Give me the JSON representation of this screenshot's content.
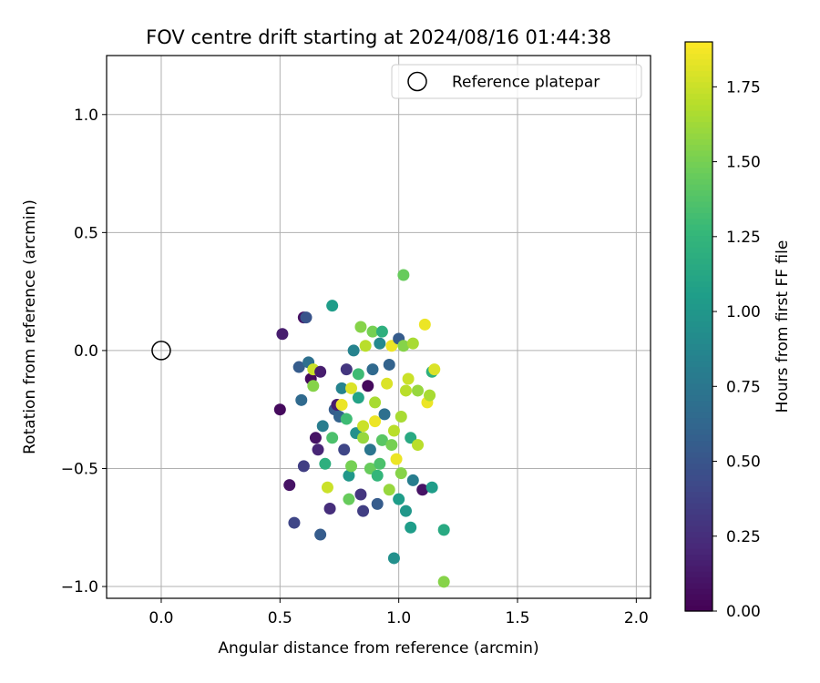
{
  "chart_data": {
    "type": "scatter",
    "title": "FOV centre drift starting at 2024/08/16 01:44:38",
    "xlabel": "Angular distance from reference (arcmin)",
    "ylabel": "Rotation from reference (arcmin)",
    "xlim": [
      -0.23,
      2.06
    ],
    "ylim": [
      -1.05,
      1.25
    ],
    "xticks": [
      0.0,
      0.5,
      1.0,
      1.5,
      2.0
    ],
    "xtick_labels": [
      "0.0",
      "0.5",
      "1.0",
      "1.5",
      "2.0"
    ],
    "yticks": [
      -1.0,
      -0.5,
      0.0,
      0.5,
      1.0
    ],
    "ytick_labels": [
      "−1.0",
      "−0.5",
      "0.0",
      "0.5",
      "1.0"
    ],
    "grid": true,
    "legend": {
      "placement": "top-right",
      "label": "Reference platepar"
    },
    "reference_point": {
      "x": 0.0,
      "y": 0.0,
      "marker": "open-circle"
    },
    "colorbar": {
      "label": "Hours from first FF file",
      "range": [
        0.0,
        1.9
      ],
      "ticks": [
        0.0,
        0.25,
        0.5,
        0.75,
        1.0,
        1.25,
        1.5,
        1.75
      ],
      "tick_labels": [
        "0.00",
        "0.25",
        "0.50",
        "0.75",
        "1.00",
        "1.25",
        "1.50",
        "1.75"
      ],
      "colormap": "viridis"
    },
    "points": [
      {
        "x": 0.5,
        "y": -0.25,
        "t": 0.05
      },
      {
        "x": 0.51,
        "y": 0.07,
        "t": 0.15
      },
      {
        "x": 0.54,
        "y": -0.57,
        "t": 0.1
      },
      {
        "x": 0.56,
        "y": -0.73,
        "t": 0.4
      },
      {
        "x": 0.58,
        "y": -0.07,
        "t": 0.55
      },
      {
        "x": 0.59,
        "y": -0.21,
        "t": 0.65
      },
      {
        "x": 0.6,
        "y": -0.49,
        "t": 0.35
      },
      {
        "x": 0.6,
        "y": 0.14,
        "t": 0.08
      },
      {
        "x": 0.61,
        "y": 0.14,
        "t": 0.5
      },
      {
        "x": 0.62,
        "y": -0.05,
        "t": 0.7
      },
      {
        "x": 0.63,
        "y": -0.12,
        "t": 0.05
      },
      {
        "x": 0.64,
        "y": -0.15,
        "t": 1.55
      },
      {
        "x": 0.64,
        "y": -0.08,
        "t": 1.75
      },
      {
        "x": 0.65,
        "y": -0.37,
        "t": 0.1
      },
      {
        "x": 0.66,
        "y": -0.42,
        "t": 0.2
      },
      {
        "x": 0.67,
        "y": -0.78,
        "t": 0.55
      },
      {
        "x": 0.67,
        "y": -0.09,
        "t": 0.15
      },
      {
        "x": 0.68,
        "y": -0.32,
        "t": 0.8
      },
      {
        "x": 0.69,
        "y": -0.48,
        "t": 1.2
      },
      {
        "x": 0.7,
        "y": -0.58,
        "t": 1.75
      },
      {
        "x": 0.71,
        "y": -0.67,
        "t": 0.25
      },
      {
        "x": 0.72,
        "y": 0.19,
        "t": 1.05
      },
      {
        "x": 0.72,
        "y": -0.37,
        "t": 1.35
      },
      {
        "x": 0.73,
        "y": -0.25,
        "t": 0.55
      },
      {
        "x": 0.74,
        "y": -0.23,
        "t": 0.15
      },
      {
        "x": 0.75,
        "y": -0.28,
        "t": 0.6
      },
      {
        "x": 0.76,
        "y": -0.16,
        "t": 0.85
      },
      {
        "x": 0.76,
        "y": -0.23,
        "t": 1.85
      },
      {
        "x": 0.77,
        "y": -0.42,
        "t": 0.4
      },
      {
        "x": 0.78,
        "y": -0.29,
        "t": 1.3
      },
      {
        "x": 0.78,
        "y": -0.08,
        "t": 0.3
      },
      {
        "x": 0.79,
        "y": -0.63,
        "t": 1.45
      },
      {
        "x": 0.79,
        "y": -0.53,
        "t": 1.0
      },
      {
        "x": 0.8,
        "y": -0.16,
        "t": 1.8
      },
      {
        "x": 0.8,
        "y": -0.49,
        "t": 1.5
      },
      {
        "x": 0.81,
        "y": 0.0,
        "t": 0.85
      },
      {
        "x": 0.82,
        "y": -0.35,
        "t": 0.95
      },
      {
        "x": 0.83,
        "y": -0.2,
        "t": 1.1
      },
      {
        "x": 0.84,
        "y": -0.61,
        "t": 0.3
      },
      {
        "x": 0.84,
        "y": 0.1,
        "t": 1.55
      },
      {
        "x": 0.85,
        "y": -0.68,
        "t": 0.35
      },
      {
        "x": 0.85,
        "y": -0.37,
        "t": 1.6
      },
      {
        "x": 0.85,
        "y": -0.32,
        "t": 1.75
      },
      {
        "x": 0.86,
        "y": 0.02,
        "t": 1.7
      },
      {
        "x": 0.87,
        "y": -0.15,
        "t": 0.05
      },
      {
        "x": 0.88,
        "y": -0.5,
        "t": 1.45
      },
      {
        "x": 0.89,
        "y": -0.08,
        "t": 0.65
      },
      {
        "x": 0.89,
        "y": 0.08,
        "t": 1.5
      },
      {
        "x": 0.9,
        "y": -0.3,
        "t": 1.85
      },
      {
        "x": 0.9,
        "y": -0.22,
        "t": 1.65
      },
      {
        "x": 0.91,
        "y": -0.65,
        "t": 0.55
      },
      {
        "x": 0.91,
        "y": -0.53,
        "t": 1.25
      },
      {
        "x": 0.92,
        "y": 0.03,
        "t": 0.9
      },
      {
        "x": 0.93,
        "y": 0.08,
        "t": 1.2
      },
      {
        "x": 0.93,
        "y": -0.38,
        "t": 1.4
      },
      {
        "x": 0.94,
        "y": -0.27,
        "t": 0.7
      },
      {
        "x": 0.95,
        "y": -0.14,
        "t": 1.8
      },
      {
        "x": 0.96,
        "y": -0.06,
        "t": 0.6
      },
      {
        "x": 0.96,
        "y": -0.59,
        "t": 1.6
      },
      {
        "x": 0.97,
        "y": 0.02,
        "t": 1.85
      },
      {
        "x": 0.97,
        "y": -0.4,
        "t": 1.5
      },
      {
        "x": 0.98,
        "y": -0.34,
        "t": 1.7
      },
      {
        "x": 0.98,
        "y": -0.88,
        "t": 0.95
      },
      {
        "x": 0.99,
        "y": -0.46,
        "t": 1.85
      },
      {
        "x": 1.0,
        "y": 0.05,
        "t": 0.55
      },
      {
        "x": 1.0,
        "y": -0.63,
        "t": 1.05
      },
      {
        "x": 1.01,
        "y": -0.52,
        "t": 1.55
      },
      {
        "x": 1.01,
        "y": -0.28,
        "t": 1.65
      },
      {
        "x": 1.02,
        "y": 0.32,
        "t": 1.45
      },
      {
        "x": 1.02,
        "y": 0.02,
        "t": 1.55
      },
      {
        "x": 1.03,
        "y": -0.68,
        "t": 1.0
      },
      {
        "x": 1.03,
        "y": -0.17,
        "t": 1.7
      },
      {
        "x": 1.04,
        "y": -0.12,
        "t": 1.75
      },
      {
        "x": 1.05,
        "y": -0.37,
        "t": 1.15
      },
      {
        "x": 1.05,
        "y": -0.75,
        "t": 1.05
      },
      {
        "x": 1.06,
        "y": 0.03,
        "t": 1.65
      },
      {
        "x": 1.06,
        "y": -0.55,
        "t": 0.8
      },
      {
        "x": 1.08,
        "y": -0.4,
        "t": 1.7
      },
      {
        "x": 1.08,
        "y": -0.17,
        "t": 1.6
      },
      {
        "x": 1.1,
        "y": -0.59,
        "t": 0.1
      },
      {
        "x": 1.11,
        "y": 0.11,
        "t": 1.85
      },
      {
        "x": 1.12,
        "y": -0.22,
        "t": 1.85
      },
      {
        "x": 1.13,
        "y": -0.19,
        "t": 1.65
      },
      {
        "x": 1.14,
        "y": -0.09,
        "t": 1.2
      },
      {
        "x": 1.15,
        "y": -0.08,
        "t": 1.8
      },
      {
        "x": 1.19,
        "y": -0.98,
        "t": 1.55
      },
      {
        "x": 1.19,
        "y": -0.76,
        "t": 1.15
      },
      {
        "x": 1.14,
        "y": -0.58,
        "t": 1.05
      },
      {
        "x": 0.92,
        "y": -0.48,
        "t": 1.35
      },
      {
        "x": 0.88,
        "y": -0.42,
        "t": 0.75
      },
      {
        "x": 0.83,
        "y": -0.1,
        "t": 1.3
      }
    ]
  }
}
